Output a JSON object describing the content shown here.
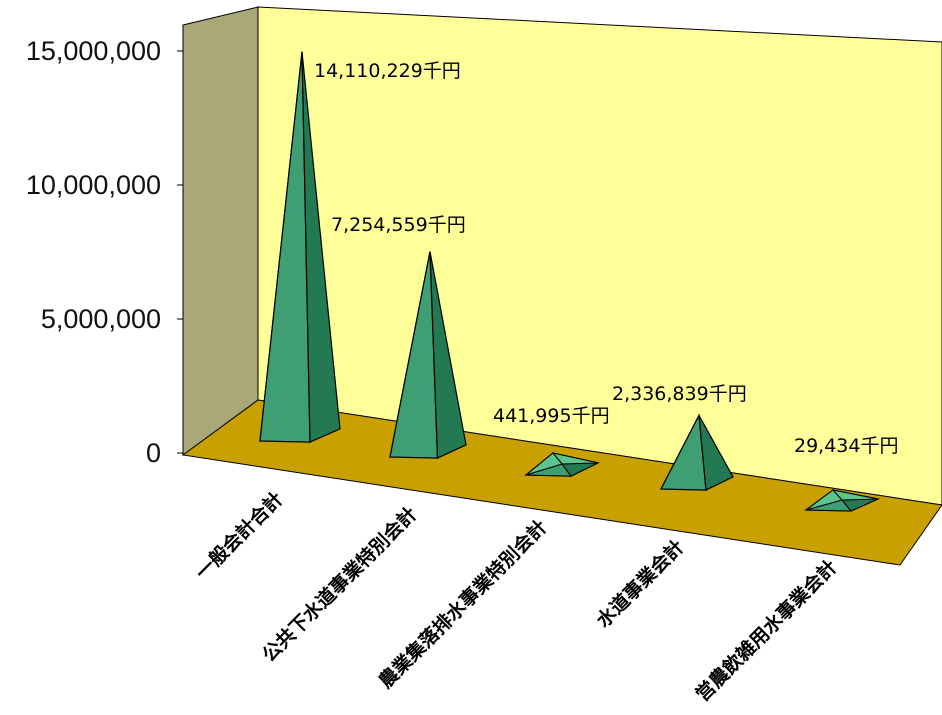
{
  "chart_data": {
    "type": "bar",
    "bar_shape": "pyramid-3d",
    "categories": [
      "一般会計合計",
      "公共下水道事業特別会計",
      "農業集落排水事業特別会計",
      "水道事業会計",
      "営農飲雑用水事業会計"
    ],
    "values": [
      14110229,
      7254559,
      441995,
      2336839,
      29434
    ],
    "data_labels": [
      "14,110,229千円",
      "7,254,559千円",
      "441,995千円",
      "2,336,839千円",
      "29,434千円"
    ],
    "ylim": [
      0,
      15000000
    ],
    "yticks": [
      0,
      5000000,
      10000000,
      15000000
    ],
    "ytick_labels": [
      "0",
      "5,000,000",
      "10,000,000",
      "15,000,000"
    ],
    "grid": false,
    "legend": "none",
    "colors": {
      "back_wall": "#ffff99",
      "side_wall": "#a8a878",
      "floor": "#c8a000",
      "bar_front": "#3f9f73",
      "bar_side": "#237a52",
      "bar_top": "#5cc58e",
      "outline": "#000000"
    }
  }
}
